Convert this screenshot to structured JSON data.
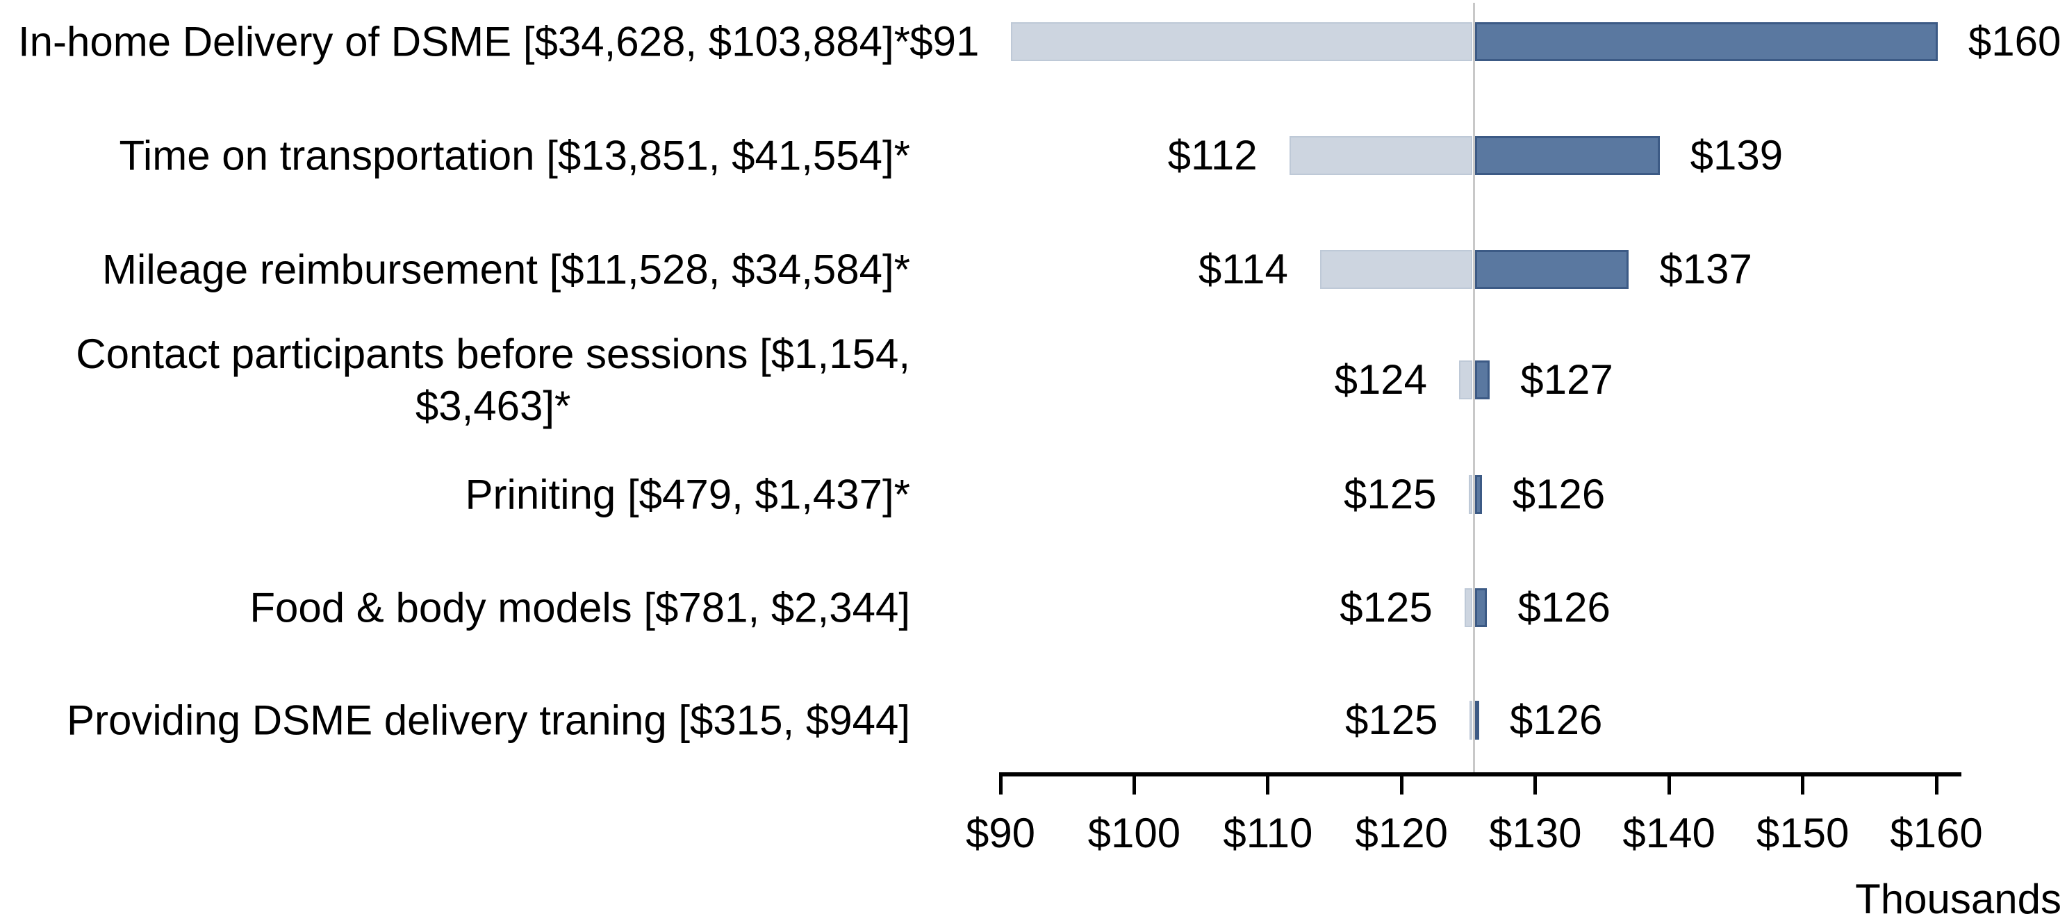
{
  "chart_data": {
    "type": "bar",
    "subtype": "tornado",
    "title": "",
    "orientation": "horizontal",
    "x_axis": {
      "tick_labels": [
        "$90",
        "$100",
        "$110",
        "$120",
        "$130",
        "$140",
        "$150",
        "$160"
      ],
      "tick_values": [
        90,
        100,
        110,
        120,
        130,
        140,
        150,
        160
      ],
      "min": 90,
      "max": 160,
      "unit_label": "Thousands"
    },
    "base_value": 125.4,
    "reference_line_color": "#c8c8c8",
    "bar_colors": {
      "low_fill": "#cdd5e0",
      "low_border": "#bec9d7",
      "high_fill": "#5a78a0",
      "high_border": "#3c5a85"
    },
    "rows": [
      {
        "label": "In-home Delivery of DSME [$34,628, $103,884]*",
        "low": 90.8,
        "high": 160.1,
        "low_label": "$91",
        "high_label": "$160"
      },
      {
        "label": "Time on transportation [$13,851, $41,554]*",
        "low": 111.6,
        "high": 139.3,
        "low_label": "$112",
        "high_label": "$139"
      },
      {
        "label": "Mileage reimbursement [$11,528, $34,584]*",
        "low": 113.9,
        "high": 137.0,
        "low_label": "$114",
        "high_label": "$137"
      },
      {
        "label": "Contact participants before sessions [$1,154,\n$3,463]*",
        "low": 124.3,
        "high": 126.6,
        "low_label": "$124",
        "high_label": "$127"
      },
      {
        "label": "Priniting [$479, $1,437]*",
        "low": 125.0,
        "high": 126.0,
        "low_label": "$125",
        "high_label": "$126"
      },
      {
        "label": "Food & body models [$781, $2,344]",
        "low": 124.7,
        "high": 126.4,
        "low_label": "$125",
        "high_label": "$126"
      },
      {
        "label": "Providing DSME delivery traning [$315, $944]",
        "low": 125.1,
        "high": 125.8,
        "low_label": "$125",
        "high_label": "$126"
      }
    ]
  }
}
